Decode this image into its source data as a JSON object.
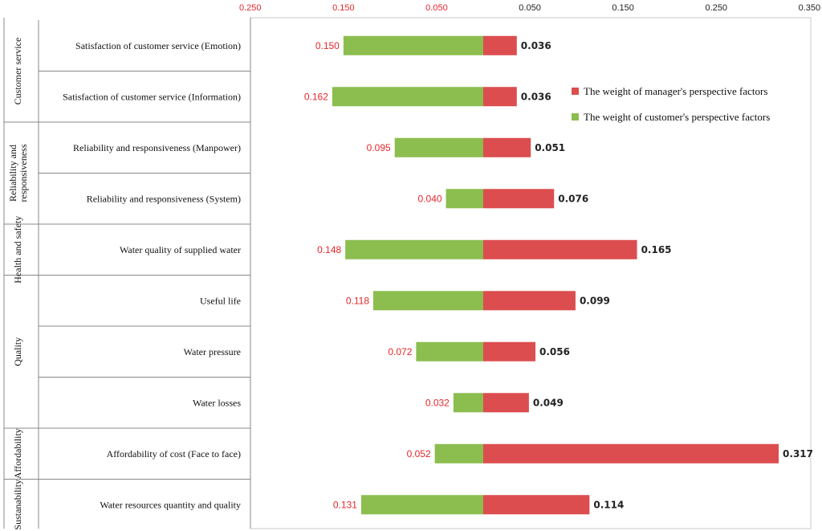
{
  "chart_data": {
    "type": "bar",
    "orientation": "horizontal-diverging",
    "title": "",
    "x_ticks": [
      "0.250",
      "0.150",
      "0.050",
      "0.050",
      "0.150",
      "0.250",
      "0.350"
    ],
    "xlim": [
      -0.25,
      0.35
    ],
    "groups": [
      {
        "label": "Customer service",
        "categories": [
          0,
          1
        ]
      },
      {
        "label": "Reliability and responsiveness",
        "categories": [
          2,
          3
        ]
      },
      {
        "label": "Health and safety",
        "categories": [
          4
        ]
      },
      {
        "label": "Quality",
        "categories": [
          5,
          6,
          7
        ]
      },
      {
        "label": "Affordability",
        "categories": [
          8
        ]
      },
      {
        "label": "Sustanability",
        "categories": [
          9
        ]
      }
    ],
    "categories": [
      "Satisfaction of customer service (Emotion)",
      "Satisfaction of customer service (Information)",
      "Reliability and responsiveness (Manpower)",
      "Reliability and responsiveness (System)",
      "Water quality of supplied water",
      "Useful life",
      "Water pressure",
      "Water losses",
      "Affordability of cost  (Face to face)",
      "Water resources quantity and quality"
    ],
    "series": [
      {
        "name": "The weight of manager's perspective factors",
        "color": "#dc4d4f",
        "side": "right",
        "values": [
          0.036,
          0.036,
          0.051,
          0.076,
          0.165,
          0.099,
          0.056,
          0.049,
          0.317,
          0.114
        ],
        "labels": [
          "0.036",
          "0.036",
          "0.051",
          "0.076",
          "0.165",
          "0.099",
          "0.056",
          "0.049",
          "0.317",
          "0.114"
        ]
      },
      {
        "name": "The weight of customer's perspective factors",
        "color": "#8cbd4f",
        "side": "left",
        "values": [
          0.15,
          0.162,
          0.095,
          0.04,
          0.148,
          0.118,
          0.072,
          0.032,
          0.052,
          0.131
        ],
        "labels": [
          "0.150",
          "0.162",
          "0.095",
          "0.040",
          "0.148",
          "0.118",
          "0.072",
          "0.032",
          "0.052",
          "0.131"
        ]
      }
    ],
    "legend_position": "top-right",
    "negative_tick_color": "#e8262b"
  }
}
